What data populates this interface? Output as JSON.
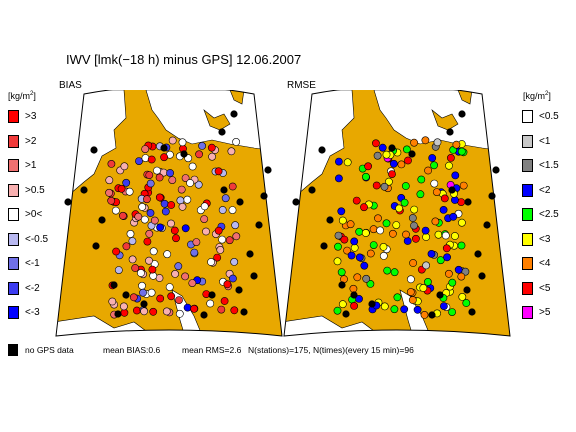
{
  "title": "IWV [lmk(−18 h) minus GPS] 12.06.2007",
  "panels": {
    "left": {
      "label": "BIAS"
    },
    "right": {
      "label": "RMSE"
    }
  },
  "unit": {
    "base": "[kg/m",
    "exp": "2",
    "close": "]"
  },
  "legend_bias": [
    {
      "label": ">3",
      "color": "#ff0000"
    },
    {
      "label": ">2",
      "color": "#f03a3a"
    },
    {
      "label": ">1",
      "color": "#f07070"
    },
    {
      "label": ">0.5",
      "color": "#f8b0b0"
    },
    {
      "label": ">0<",
      "color": "#ffffff"
    },
    {
      "label": "<-0.5",
      "color": "#b8b8f0"
    },
    {
      "label": "<-1",
      "color": "#7070e8"
    },
    {
      "label": "<-2",
      "color": "#3c3cf0"
    },
    {
      "label": "<-3",
      "color": "#0000ff"
    }
  ],
  "legend_rmse": [
    {
      "label": "<0.5",
      "color": "#ffffff"
    },
    {
      "label": "<1",
      "color": "#c8c8c8"
    },
    {
      "label": "<1.5",
      "color": "#808080"
    },
    {
      "label": "<2",
      "color": "#0000ff"
    },
    {
      "label": "<2.5",
      "color": "#00ff00"
    },
    {
      "label": "<3",
      "color": "#ffff00"
    },
    {
      "label": "<4",
      "color": "#ff8000"
    },
    {
      "label": "<5",
      "color": "#ff0000"
    },
    {
      "label": ">5",
      "color": "#ff00ff"
    }
  ],
  "colors": {
    "land": "#e8a800",
    "sea": "#ffffff",
    "no_data": "#000000"
  },
  "footer": {
    "no_data_label": "no GPS data",
    "mean_bias": "mean BIAS:0.6",
    "mean_rms": "mean RMS=2.6",
    "counts": "N(stations)=175, N(times)(every 15 min)=96"
  }
}
